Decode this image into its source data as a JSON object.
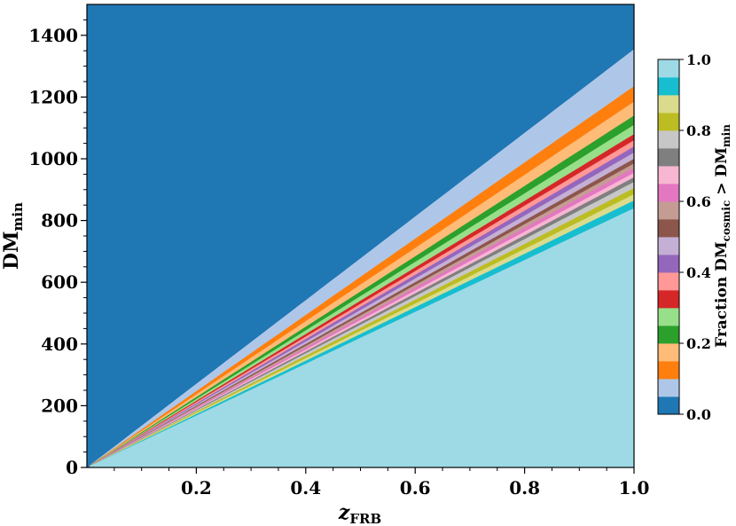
{
  "chart_data": {
    "type": "heatmap",
    "xlabel_main": "z",
    "xlabel_sub": "FRB",
    "ylabel_main": "DM",
    "ylabel_sub": "min",
    "xlim": [
      0.0,
      1.0
    ],
    "ylim": [
      0,
      1500
    ],
    "x_ticks": [
      {
        "value": 0.2,
        "label": "0.2"
      },
      {
        "value": 0.4,
        "label": "0.4"
      },
      {
        "value": 0.6,
        "label": "0.6"
      },
      {
        "value": 0.8,
        "label": "0.8"
      },
      {
        "value": 1.0,
        "label": "1.0"
      }
    ],
    "y_ticks": [
      {
        "value": 0,
        "label": "0"
      },
      {
        "value": 200,
        "label": "200"
      },
      {
        "value": 400,
        "label": "400"
      },
      {
        "value": 600,
        "label": "600"
      },
      {
        "value": 800,
        "label": "800"
      },
      {
        "value": 1000,
        "label": "1000"
      },
      {
        "value": 1200,
        "label": "1200"
      },
      {
        "value": 1400,
        "label": "1400"
      }
    ],
    "colorbar": {
      "label_main": "Fraction DM",
      "label_sub1": "cosmic",
      "label_mid": " > DM",
      "label_sub2": "min",
      "range": [
        0.0,
        1.0
      ],
      "ticks": [
        {
          "value": 0.0,
          "label": "0.0"
        },
        {
          "value": 0.2,
          "label": "0.2"
        },
        {
          "value": 0.4,
          "label": "0.4"
        },
        {
          "value": 0.6,
          "label": "0.6"
        },
        {
          "value": 0.8,
          "label": "0.8"
        },
        {
          "value": 1.0,
          "label": "1.0"
        }
      ],
      "colors": [
        "#1f77b4",
        "#aec7e8",
        "#ff7f0e",
        "#ffbb78",
        "#2ca02c",
        "#98df8a",
        "#d62728",
        "#ff9896",
        "#9467bd",
        "#c5b0d5",
        "#8c564b",
        "#c49c94",
        "#e377c2",
        "#f7b6d2",
        "#7f7f7f",
        "#c7c7c7",
        "#bcbd22",
        "#dbdb8d",
        "#17becf",
        "#9edae5"
      ]
    },
    "band_boundaries": [
      {
        "fraction": 0.05,
        "dm_at_z1": 1355
      },
      {
        "fraction": 0.1,
        "dm_at_z1": 1235
      },
      {
        "fraction": 0.15,
        "dm_at_z1": 1185
      },
      {
        "fraction": 0.2,
        "dm_at_z1": 1140
      },
      {
        "fraction": 0.25,
        "dm_at_z1": 1110
      },
      {
        "fraction": 0.3,
        "dm_at_z1": 1080
      },
      {
        "fraction": 0.35,
        "dm_at_z1": 1060
      },
      {
        "fraction": 0.4,
        "dm_at_z1": 1040
      },
      {
        "fraction": 0.45,
        "dm_at_z1": 1020
      },
      {
        "fraction": 0.5,
        "dm_at_z1": 1000
      },
      {
        "fraction": 0.55,
        "dm_at_z1": 985
      },
      {
        "fraction": 0.6,
        "dm_at_z1": 970
      },
      {
        "fraction": 0.65,
        "dm_at_z1": 955
      },
      {
        "fraction": 0.7,
        "dm_at_z1": 940
      },
      {
        "fraction": 0.75,
        "dm_at_z1": 925
      },
      {
        "fraction": 0.8,
        "dm_at_z1": 905
      },
      {
        "fraction": 0.85,
        "dm_at_z1": 885
      },
      {
        "fraction": 0.9,
        "dm_at_z1": 865
      },
      {
        "fraction": 0.95,
        "dm_at_z1": 840
      }
    ]
  }
}
